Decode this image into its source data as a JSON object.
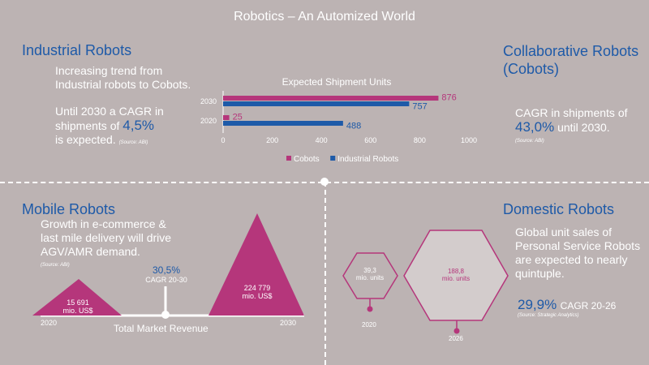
{
  "page_title": "Robotics – An Automized World",
  "industrial": {
    "heading": "Industrial Robots",
    "line1": "Increasing trend from",
    "line2": "Industrial robots to Cobots.",
    "line3": "Until 2030 a CAGR in",
    "line4a": "shipments of",
    "cagr": "4,5%",
    "line5": "is expected.",
    "source": "(Source: ABI)"
  },
  "cobots": {
    "heading_line1": "Collaborative Robots",
    "heading_line2": "(Cobots)",
    "line1": "CAGR in shipments of",
    "cagr": "43,0%",
    "line2b": "until 2030.",
    "source": "(Source: ABI)"
  },
  "mobile": {
    "heading": "Mobile Robots",
    "line1": "Growth in e-commerce &",
    "line2": "last mile delivery will drive",
    "line3": "AGV/AMR demand.",
    "source": "(Source: ABI)",
    "cagr_value": "30,5%",
    "cagr_label": "CAGR 20-30",
    "value_2020_line1": "15 691",
    "value_2020_line2": "mio. US$",
    "value_2030_line1": "224 779",
    "value_2030_line2": "mio. US$",
    "year_start": "2020",
    "year_end": "2030",
    "axis_label": "Total Market Revenue"
  },
  "domestic": {
    "heading": "Domestic Robots",
    "line1": "Global unit sales of",
    "line2": "Personal Service Robots",
    "line3": "are expected to nearly",
    "line4": "quintuple.",
    "cagr": "29,9%",
    "cagr_label": "CAGR 20-26",
    "source": "(Source: Strategic Analytics)",
    "value_2020_line1": "39,3",
    "value_2020_line2": "mio. units",
    "value_2026_line1": "188,8",
    "value_2026_line2": "mio. units",
    "year_2020": "2020",
    "year_2026": "2026"
  },
  "colors": {
    "background": "#bcb3b3",
    "blue": "#1e5aa8",
    "magenta": "#b5367b"
  },
  "chart_data": {
    "type": "bar",
    "orientation": "horizontal",
    "title": "Expected Shipment Units",
    "categories": [
      "2030",
      "2020"
    ],
    "series": [
      {
        "name": "Cobots",
        "values": [
          876,
          25
        ],
        "color": "#b5367b"
      },
      {
        "name": "Industrial Robots",
        "values": [
          757,
          488
        ],
        "color": "#1e5aa8"
      }
    ],
    "xlim": [
      0,
      1000
    ],
    "x_ticks": [
      "0",
      "200",
      "400",
      "600",
      "800",
      "1000"
    ],
    "grid": false,
    "legend": "bottom"
  }
}
